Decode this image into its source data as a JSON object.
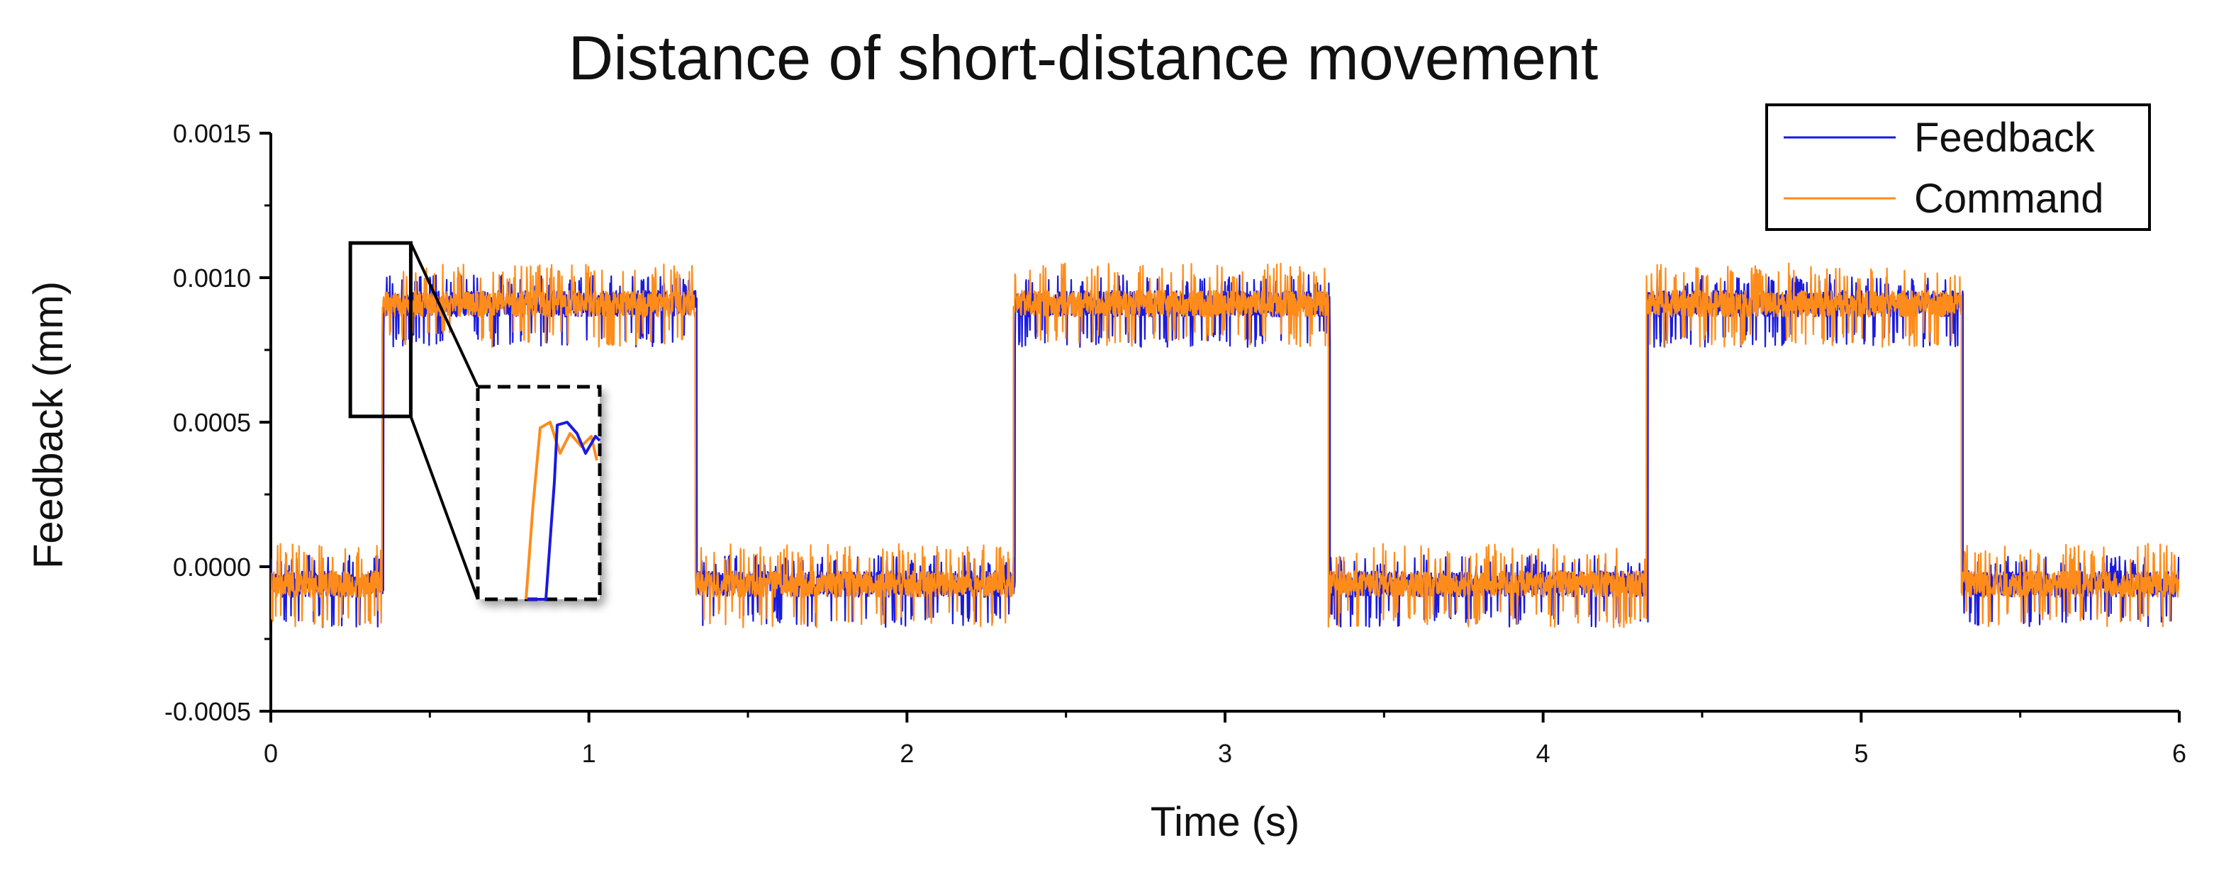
{
  "chart_data": {
    "type": "line",
    "title": "Distance of short-distance movement",
    "xlabel": "Time (s)",
    "ylabel": "Feedback (mm)",
    "xlim": [
      0,
      6
    ],
    "ylim": [
      -0.0005,
      0.0015
    ],
    "x_ticks": [
      0,
      1,
      2,
      3,
      4,
      5,
      6
    ],
    "x_tick_labels": [
      "0",
      "1",
      "2",
      "3",
      "4",
      "5",
      "6"
    ],
    "y_ticks": [
      -0.0005,
      0,
      0.0005,
      0.001,
      0.0015
    ],
    "y_tick_labels": [
      "-0.0005",
      "0.0000",
      "0.0005",
      "0.0010",
      "0.0015"
    ],
    "grid": false,
    "legend_position": "top-right",
    "inset": {
      "description_visible": false,
      "zoom_region_x": [
        0.25,
        0.44
      ],
      "zoom_region_y": [
        0.00052,
        0.00112
      ]
    },
    "series": [
      {
        "name": "Feedback",
        "color": "#1a1adf",
        "levels": [
          {
            "x_start": 0.0,
            "x_end": 0.355,
            "level": -6e-05
          },
          {
            "x_start": 0.355,
            "x_end": 1.34,
            "level": 0.00091
          },
          {
            "x_start": 1.34,
            "x_end": 2.34,
            "level": -6e-05
          },
          {
            "x_start": 2.34,
            "x_end": 3.33,
            "level": 0.00091
          },
          {
            "x_start": 3.33,
            "x_end": 4.33,
            "level": -6e-05
          },
          {
            "x_start": 4.33,
            "x_end": 5.32,
            "level": 0.00091
          },
          {
            "x_start": 5.32,
            "x_end": 6.0,
            "level": -6e-05
          }
        ],
        "noise_band": [
          -0.00015,
          0.0001
        ]
      },
      {
        "name": "Command",
        "color": "#ff8c1a",
        "levels": [
          {
            "x_start": 0.0,
            "x_end": 0.35,
            "level": -6e-05
          },
          {
            "x_start": 0.35,
            "x_end": 1.335,
            "level": 0.00091
          },
          {
            "x_start": 1.335,
            "x_end": 2.335,
            "level": -6e-05
          },
          {
            "x_start": 2.335,
            "x_end": 3.325,
            "level": 0.00091
          },
          {
            "x_start": 3.325,
            "x_end": 4.325,
            "level": -6e-05
          },
          {
            "x_start": 4.325,
            "x_end": 5.315,
            "level": 0.00091
          },
          {
            "x_start": 5.315,
            "x_end": 6.0,
            "level": -6e-05
          }
        ],
        "noise_band": [
          -0.00015,
          0.00014
        ]
      }
    ]
  }
}
